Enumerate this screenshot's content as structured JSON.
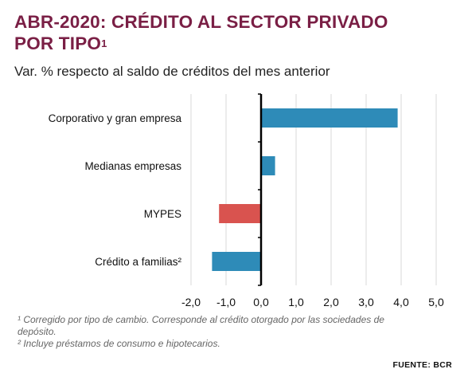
{
  "title": {
    "line1": "ABR-2020: CRÉDITO AL SECTOR PRIVADO",
    "line2": "POR TIPO",
    "sup": "1"
  },
  "subtitle": "Var. % respecto al saldo de créditos del mes anterior",
  "chart_data": {
    "type": "bar",
    "orientation": "horizontal",
    "categories": [
      "Corporativo y gran empresa",
      "Medianas empresas",
      "MYPES",
      "Crédito a familias²"
    ],
    "values": [
      3.9,
      0.4,
      -1.2,
      -1.4
    ],
    "bar_colors": [
      "#2e8bb8",
      "#2e8bb8",
      "#d9534f",
      "#2e8bb8"
    ],
    "xlim": [
      -2.0,
      5.0
    ],
    "xticks": [
      -2.0,
      -1.0,
      0.0,
      1.0,
      2.0,
      3.0,
      4.0,
      5.0
    ],
    "xtick_labels": [
      "-2,0",
      "-1,0",
      "0,0",
      "1,0",
      "2,0",
      "3,0",
      "4,0",
      "5,0"
    ],
    "grid": "vertical",
    "legend": "none",
    "xlabel": "",
    "ylabel": ""
  },
  "footnotes": {
    "note1": "¹ Corregido por tipo de cambio. Corresponde al crédito otorgado por las sociedades de depósito.",
    "note2": "² Incluye préstamos de consumo e hipotecarios."
  },
  "source": "FUENTE: BCR",
  "colors": {
    "title": "#7a1f45",
    "positive_bar": "#2e8bb8",
    "negative_bar": "#d9534f",
    "grid": "#d9d9d9"
  }
}
